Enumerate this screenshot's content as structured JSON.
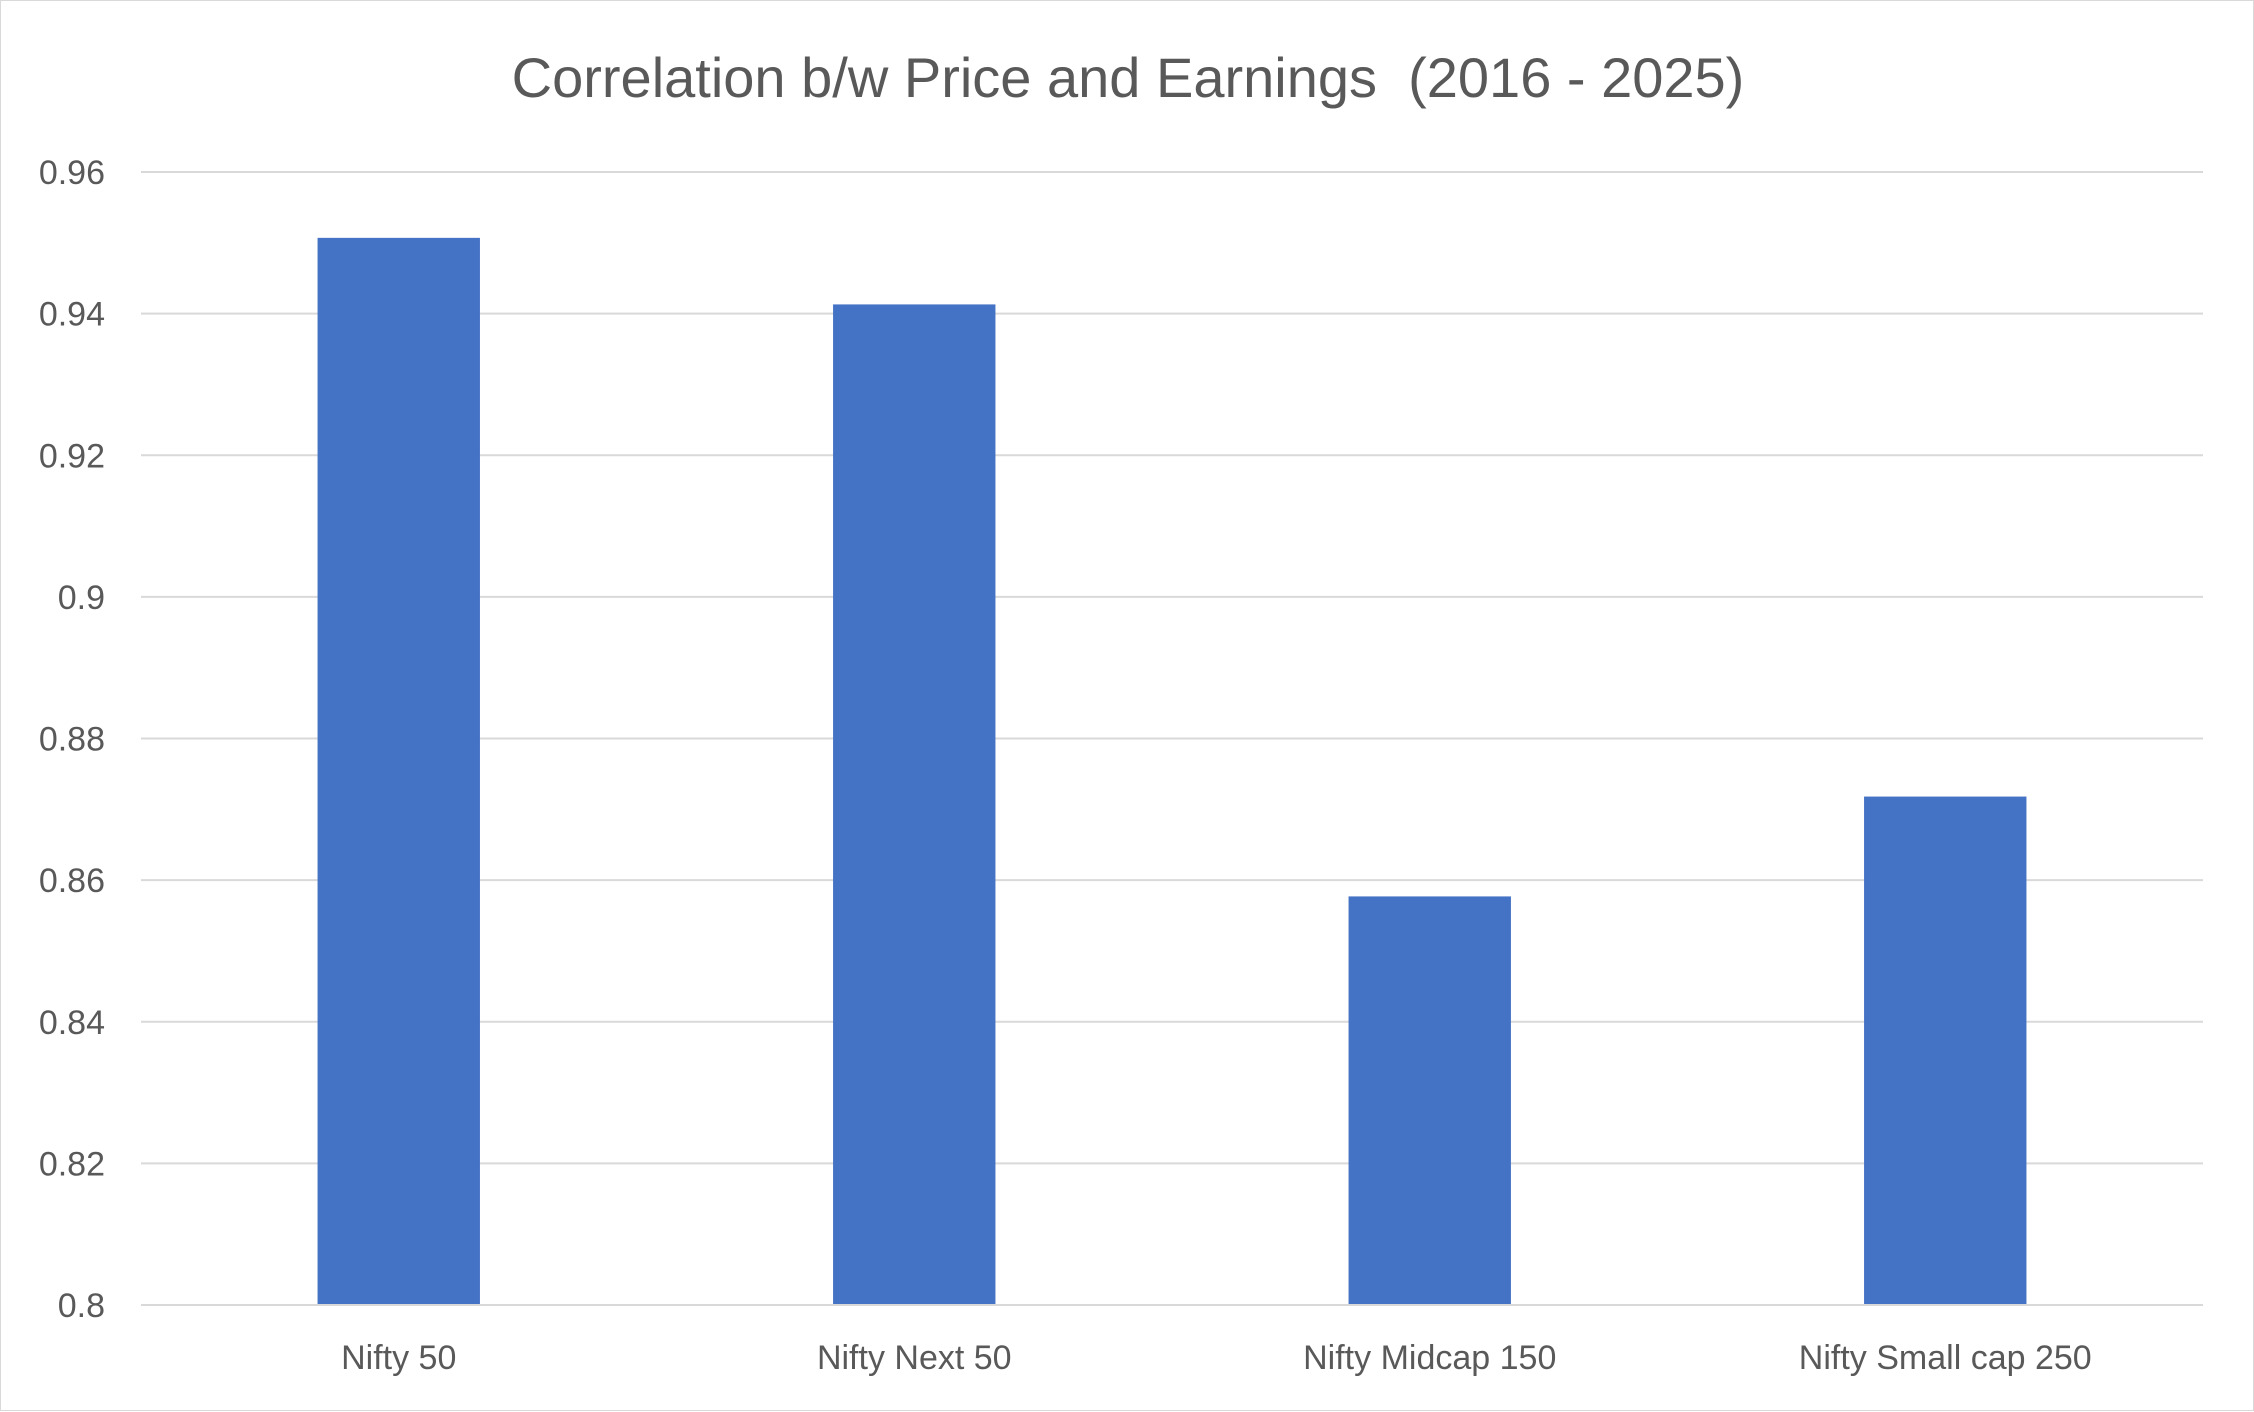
{
  "chart_data": {
    "type": "bar",
    "title": "Correlation b/w Price and Earnings  (2016 - 2025)",
    "xlabel": "",
    "ylabel": "",
    "categories": [
      "Nifty 50",
      "Nifty Next 50",
      "Nifty Midcap 150",
      "Nifty Small cap 250"
    ],
    "values": [
      0.9507,
      0.9413,
      0.8577,
      0.8718
    ],
    "ylim": [
      0.8,
      0.96
    ],
    "y_ticks": [
      "0.8",
      "0.82",
      "0.84",
      "0.86",
      "0.88",
      "0.9",
      "0.92",
      "0.94",
      "0.96"
    ],
    "grid": true,
    "legend": "none",
    "bar_color": "#4472c4"
  }
}
